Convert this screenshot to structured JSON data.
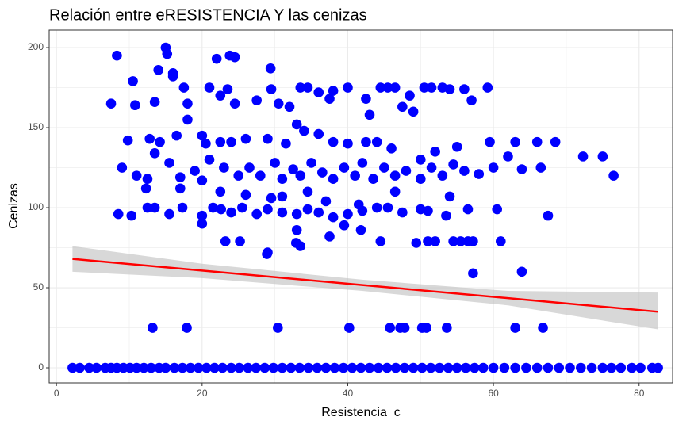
{
  "chart_data": {
    "type": "scatter",
    "title": "Relación entre eRESISTENCIA Y las cenizas",
    "x_label": "Resistencia_c",
    "y_label": "Cenizas",
    "color": "#0000ff",
    "xlim": [
      -1.0,
      84.6
    ],
    "ylim": [
      -9.4,
      210.9
    ],
    "xticks": [
      0,
      20,
      40,
      60,
      80
    ],
    "yticks": [
      0,
      50,
      100,
      150,
      200
    ],
    "grid": true,
    "x": [
      2.2,
      3.2,
      4.5,
      5.5,
      6.7,
      7.5,
      8.3,
      9.2,
      10.1,
      11.0,
      12.0,
      13.0,
      14.1,
      15.0,
      16.2,
      17.3,
      18.4,
      19.5,
      20.6,
      21.7,
      22.8,
      24.0,
      25.1,
      26.3,
      27.4,
      28.6,
      29.8,
      31.0,
      32.2,
      33.4,
      34.6,
      35.8,
      37.0,
      38.2,
      39.4,
      40.6,
      41.8,
      43.0,
      44.2,
      45.4,
      46.6,
      47.8,
      49.0,
      50.2,
      51.4,
      52.6,
      53.8,
      55.0,
      56.2,
      57.4,
      58.6,
      60.0,
      61.5,
      63.0,
      64.5,
      66.0,
      67.5,
      69.0,
      70.5,
      72.0,
      73.5,
      75.0,
      76.2,
      77.5,
      79.0,
      80.2,
      81.8,
      82.6,
      13.2,
      17.9,
      30.4,
      40.2,
      45.8,
      47.2,
      47.8,
      50.2,
      50.8,
      53.6,
      63.0,
      66.8,
      57.2,
      63.9,
      29.0,
      28.9,
      8.3,
      15.0,
      15.2,
      16.0,
      16.0,
      14.0,
      22.0,
      23.8,
      24.5,
      29.4,
      7.5,
      10.5,
      13.5,
      17.5,
      18.0,
      21.0,
      22.5,
      23.5,
      24.5,
      27.5,
      29.5,
      30.5,
      32.0,
      33.5,
      34.5,
      36.0,
      38.0,
      40.0,
      42.5,
      44.5,
      45.5,
      46.5,
      47.5,
      49.0,
      50.5,
      51.5,
      53.0,
      54.0,
      56.0,
      57.0,
      59.2,
      37.5,
      43.0,
      48.5,
      10.8,
      18.0,
      20.0,
      9.8,
      12.8,
      14.2,
      16.5,
      20.5,
      22.5,
      24.0,
      26.0,
      29.0,
      31.5,
      33.0,
      34.0,
      36.0,
      38.0,
      40.0,
      42.5,
      44.0,
      46.0,
      50.0,
      52.0,
      55.0,
      59.5,
      63.0,
      66.0,
      68.5,
      72.3,
      75.0,
      76.5,
      9.0,
      11.0,
      12.5,
      13.5,
      15.5,
      17.0,
      19.0,
      21.0,
      23.0,
      25.0,
      26.5,
      28.0,
      30.0,
      31.0,
      32.5,
      33.5,
      35.0,
      36.5,
      38.0,
      39.5,
      41.0,
      42.0,
      43.5,
      45.0,
      46.5,
      48.0,
      50.0,
      51.5,
      53.0,
      54.5,
      56.0,
      58.0,
      60.0,
      62.0,
      63.9,
      66.5,
      12.3,
      17.0,
      20.0,
      22.5,
      26.0,
      29.5,
      31.0,
      34.5,
      37.0,
      41.5,
      46.5,
      54.0,
      10.3,
      8.5,
      12.5,
      13.5,
      15.5,
      17.3,
      20.0,
      21.5,
      22.6,
      24.0,
      25.5,
      27.5,
      29.0,
      31.0,
      33.0,
      34.5,
      36.0,
      38.0,
      40.0,
      42.0,
      44.0,
      45.5,
      47.5,
      50.0,
      51.0,
      53.5,
      56.5,
      60.5,
      67.5,
      20.0,
      33.0,
      39.5,
      41.8,
      23.2,
      25.2,
      32.9,
      33.5,
      37.5,
      44.5,
      49.4,
      51.0,
      52.0,
      54.5,
      55.5,
      56.5,
      57.2,
      61.0
    ],
    "values": [
      0,
      0,
      0,
      0,
      0,
      0,
      0,
      0,
      0,
      0,
      0,
      0,
      0,
      0,
      0,
      0,
      0,
      0,
      0,
      0,
      0,
      0,
      0,
      0,
      0,
      0,
      0,
      0,
      0,
      0,
      0,
      0,
      0,
      0,
      0,
      0,
      0,
      0,
      0,
      0,
      0,
      0,
      0,
      0,
      0,
      0,
      0,
      0,
      0,
      0,
      0,
      0,
      0,
      0,
      0,
      0,
      0,
      0,
      0,
      0,
      0,
      0,
      0,
      0,
      0,
      0,
      0,
      0,
      25,
      25,
      25,
      25,
      25,
      25,
      25,
      25,
      25,
      25,
      25,
      25,
      59,
      60,
      72,
      71,
      195,
      200,
      196,
      184,
      182,
      186,
      193,
      195,
      194,
      187,
      165,
      179,
      166,
      175,
      165,
      175,
      170,
      174,
      165,
      167,
      174,
      165,
      163,
      175,
      175,
      172,
      173,
      175,
      168,
      175,
      175,
      175,
      163,
      160,
      175,
      175,
      175,
      174,
      174,
      167,
      175,
      168,
      158,
      170,
      164,
      155,
      145,
      142,
      143,
      141,
      145,
      140,
      141,
      141,
      143,
      143,
      140,
      152,
      148,
      146,
      141,
      140,
      141,
      141,
      137,
      130,
      135,
      138,
      141,
      141,
      141,
      141,
      132,
      132,
      120,
      125,
      120,
      118,
      134,
      128,
      119,
      123,
      130,
      125,
      120,
      125,
      120,
      128,
      118,
      124,
      120,
      128,
      122,
      118,
      125,
      120,
      128,
      118,
      125,
      120,
      123,
      118,
      125,
      120,
      127,
      123,
      121,
      125,
      132,
      124,
      125,
      112,
      112,
      117,
      110,
      108,
      106,
      107,
      110,
      104,
      102,
      110,
      107,
      95,
      96,
      100,
      100,
      96,
      100,
      95,
      100,
      99,
      97,
      100,
      96,
      99,
      97,
      96,
      99,
      97,
      94,
      96,
      98,
      100,
      100,
      97,
      99,
      98,
      95,
      99,
      99,
      95,
      90,
      86,
      89,
      86,
      79,
      79,
      78,
      76,
      82,
      79,
      78,
      79,
      79,
      79,
      79,
      79,
      79,
      79
    ],
    "fit": {
      "color": "#ff0000",
      "band_color": "#bebebe",
      "x": [
        2.2,
        20,
        42,
        62,
        82.6
      ],
      "y": [
        68,
        60.7,
        51.7,
        43.5,
        35
      ],
      "lower": [
        60,
        56,
        48,
        39,
        24
      ],
      "upper": [
        76,
        65,
        55,
        48,
        47
      ]
    }
  }
}
